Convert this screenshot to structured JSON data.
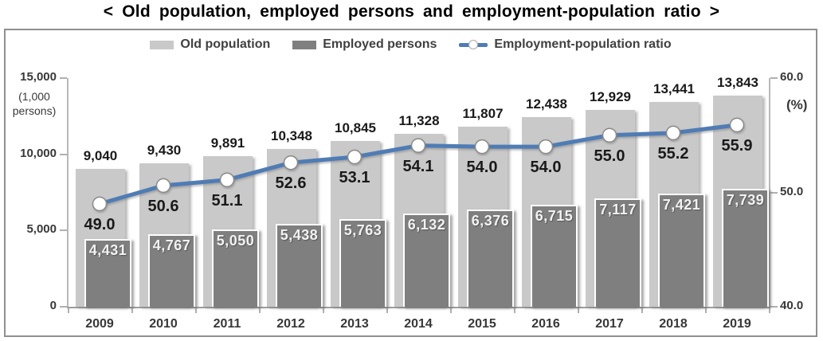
{
  "title": "< Old population, employed persons and employment-population ratio >",
  "axes": {
    "left_unit_lines": [
      "(1,000",
      "persons)"
    ],
    "right_unit": "(%)"
  },
  "chart_data": {
    "type": "bar-line-combo",
    "title": "< Old population, employed persons and employment-population ratio >",
    "categories": [
      "2009",
      "2010",
      "2011",
      "2012",
      "2013",
      "2014",
      "2015",
      "2016",
      "2017",
      "2018",
      "2019"
    ],
    "series": [
      {
        "name": "Old population",
        "type": "bar",
        "axis": "left",
        "color": "#c9c9c9",
        "values": [
          9040,
          9430,
          9891,
          10348,
          10845,
          11328,
          11807,
          12438,
          12929,
          13441,
          13843
        ],
        "labels": [
          "9,040",
          "9,430",
          "9,891",
          "10,348",
          "10,845",
          "11,328",
          "11,807",
          "12,438",
          "12,929",
          "13,441",
          "13,843"
        ]
      },
      {
        "name": "Employed persons",
        "type": "bar",
        "axis": "left",
        "color": "#7f7f7f",
        "values": [
          4431,
          4767,
          5050,
          5438,
          5763,
          6132,
          6376,
          6715,
          7117,
          7421,
          7739
        ],
        "labels": [
          "4,431",
          "4,767",
          "5,050",
          "5,438",
          "5,763",
          "6,132",
          "6,376",
          "6,715",
          "7,117",
          "7,421",
          "7,739"
        ]
      },
      {
        "name": "Employment-population ratio",
        "type": "line",
        "axis": "right",
        "color": "#4f7cb5",
        "marker": "white-circle",
        "values": [
          49.0,
          50.6,
          51.1,
          52.6,
          53.1,
          54.1,
          54.0,
          54.0,
          55.0,
          55.2,
          55.9
        ],
        "labels": [
          "49.0",
          "50.6",
          "51.1",
          "52.6",
          "53.1",
          "54.1",
          "54.0",
          "54.0",
          "55.0",
          "55.2",
          "55.9"
        ]
      }
    ],
    "ylim_left": [
      0,
      15000
    ],
    "ylim_right": [
      40,
      60
    ],
    "left_ticks": {
      "values": [
        0,
        5000,
        10000,
        15000
      ],
      "labels": [
        "0",
        "5,000",
        "10,000",
        "15,000"
      ]
    },
    "right_ticks": {
      "values": [
        40,
        50,
        60
      ],
      "labels": [
        "40.0",
        "50.0",
        "60.0"
      ]
    },
    "left_axis_unit": "(1,000 persons)",
    "right_axis_unit": "(%)",
    "grid": false,
    "legend_position": "top-center"
  },
  "colors": {
    "bar_light": "#c9c9c9",
    "bar_dark": "#7f7f7f",
    "line_blue": "#4f7cb5",
    "axis_gray": "#b8b8b8",
    "frame_gray": "#8f8f8f",
    "label_dark": "#1a1a1a",
    "label_white": "#f2f2f2",
    "legend_text": "#404040"
  }
}
